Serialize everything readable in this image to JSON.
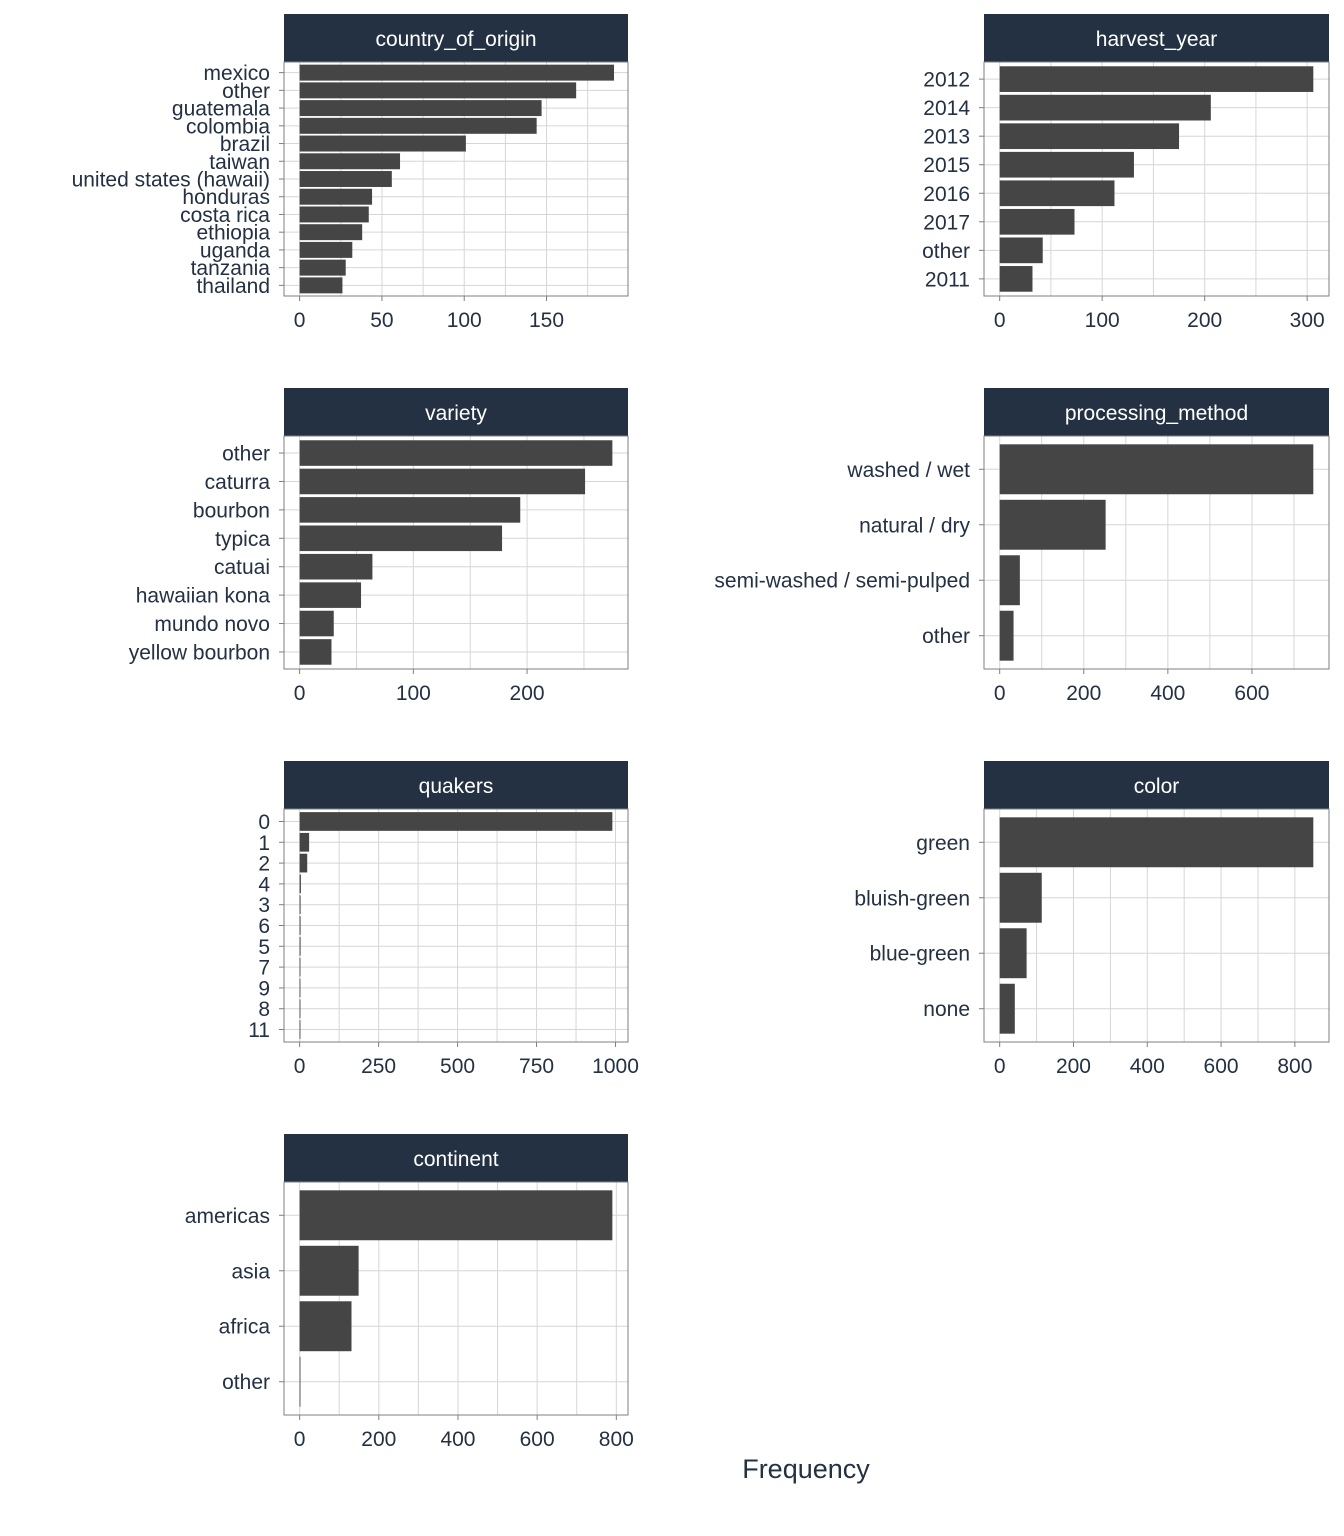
{
  "chart_data": [
    {
      "type": "bar",
      "title": "country_of_origin",
      "categories": [
        "mexico",
        "other",
        "guatemala",
        "colombia",
        "brazil",
        "taiwan",
        "united states (hawaii)",
        "honduras",
        "costa rica",
        "ethiopia",
        "uganda",
        "tanzania",
        "thailand"
      ],
      "values": [
        191,
        168,
        147,
        144,
        101,
        61,
        56,
        44,
        42,
        38,
        32,
        28,
        26
      ],
      "xticks": [
        0,
        50,
        100,
        150
      ],
      "xlim": [
        -9.5,
        199.5
      ],
      "bar_color": "#454545",
      "header_color": "#233143"
    },
    {
      "type": "bar",
      "title": "harvest_year",
      "categories": [
        "2012",
        "2014",
        "2013",
        "2015",
        "2016",
        "2017",
        "other",
        "2011"
      ],
      "values": [
        306,
        206,
        175,
        131,
        112,
        73,
        42,
        32
      ],
      "xticks": [
        0,
        100,
        200,
        300
      ],
      "xlim": [
        -15.3,
        321.3
      ],
      "bar_color": "#454545",
      "header_color": "#233143"
    },
    {
      "type": "bar",
      "title": "variety",
      "categories": [
        "other",
        "caturra",
        "bourbon",
        "typica",
        "catuai",
        "hawaiian kona",
        "mundo novo",
        "yellow bourbon"
      ],
      "values": [
        275,
        251,
        194,
        178,
        64,
        54,
        30,
        28
      ],
      "xticks": [
        0,
        100,
        200
      ],
      "xlim": [
        -13.75,
        288.75
      ],
      "bar_color": "#454545",
      "header_color": "#233143"
    },
    {
      "type": "bar",
      "title": "processing_method",
      "categories": [
        "washed / wet",
        "natural / dry",
        "semi-washed / semi-pulped",
        "other"
      ],
      "values": [
        746,
        252,
        48,
        33
      ],
      "xticks": [
        0,
        200,
        400,
        600
      ],
      "xlim": [
        -37.3,
        783.3
      ],
      "bar_color": "#454545",
      "header_color": "#233143"
    },
    {
      "type": "bar",
      "title": "quakers",
      "categories": [
        "0",
        "1",
        "2",
        "4",
        "3",
        "6",
        "5",
        "7",
        "9",
        "8",
        "11"
      ],
      "values": [
        990,
        30,
        24,
        4,
        3,
        3,
        3,
        2,
        1,
        1,
        1
      ],
      "xticks": [
        0,
        250,
        500,
        750,
        1000
      ],
      "xlim": [
        -49.5,
        1039.5
      ],
      "bar_color": "#454545",
      "header_color": "#233143"
    },
    {
      "type": "bar",
      "title": "color",
      "categories": [
        "green",
        "bluish-green",
        "blue-green",
        "none"
      ],
      "values": [
        850,
        114,
        73,
        41
      ],
      "xticks": [
        0,
        200,
        400,
        600,
        800
      ],
      "xlim": [
        -42.5,
        892.5
      ],
      "bar_color": "#454545",
      "header_color": "#233143"
    },
    {
      "type": "bar",
      "title": "continent",
      "categories": [
        "americas",
        "asia",
        "africa",
        "other"
      ],
      "values": [
        790,
        149,
        131,
        1
      ],
      "xticks": [
        0,
        200,
        400,
        600,
        800
      ],
      "xlim": [
        -39.5,
        829.5
      ],
      "bar_color": "#454545",
      "header_color": "#233143"
    }
  ],
  "xlabel": "Frequency"
}
